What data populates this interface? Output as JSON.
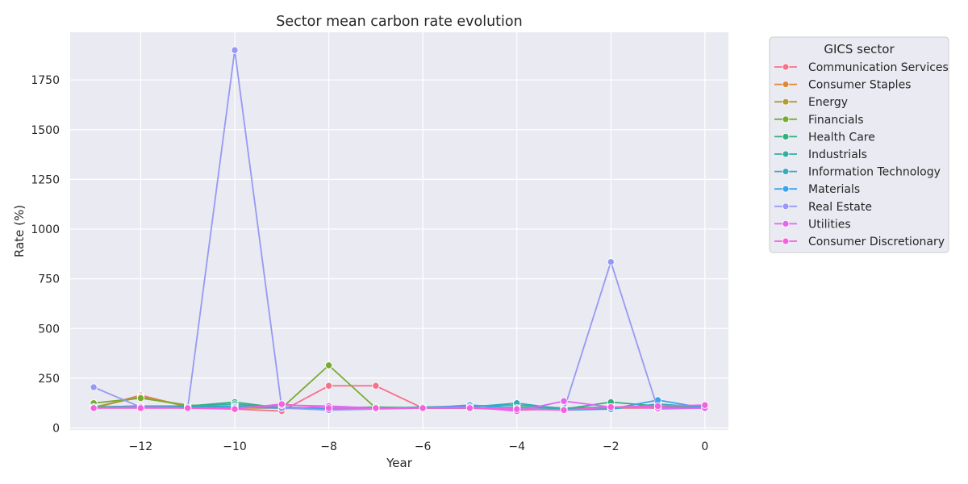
{
  "chart_data": {
    "type": "line",
    "title": "Sector mean carbon rate evolution",
    "xlabel": "Year",
    "ylabel": "Rate (%)",
    "xlim": [
      -13.5,
      0.5
    ],
    "ylim": [
      -10,
      1990
    ],
    "xticks": [
      -12,
      -10,
      -8,
      -6,
      -4,
      -2,
      0
    ],
    "xtick_labels": [
      "−12",
      "−10",
      "−8",
      "−6",
      "−4",
      "−2",
      "0"
    ],
    "yticks": [
      0,
      250,
      500,
      750,
      1000,
      1250,
      1500,
      1750
    ],
    "ytick_labels": [
      "0",
      "250",
      "500",
      "750",
      "1000",
      "1250",
      "1500",
      "1750"
    ],
    "grid": true,
    "background": "#eaeaf2",
    "legend": {
      "title": "GICS sector",
      "placement": "outside-right"
    },
    "series": [
      {
        "name": "Communication Services",
        "color": "#f77189",
        "x": [
          -13,
          -12,
          -11,
          -10,
          -9,
          -8,
          -7,
          -6,
          -5,
          -4,
          -3,
          -2,
          -1,
          0
        ],
        "y": [
          100,
          165,
          105,
          95,
          85,
          212,
          212,
          100,
          100,
          90,
          95,
          100,
          100,
          100
        ]
      },
      {
        "name": "Consumer Staples",
        "color": "#dc8932",
        "x": [
          -13,
          -12,
          -11,
          -10,
          -9,
          -8,
          -7,
          -6,
          -5,
          -4,
          -3,
          -2,
          -1,
          0
        ],
        "y": [
          100,
          160,
          110,
          100,
          100,
          100,
          100,
          100,
          100,
          100,
          95,
          100,
          105,
          100
        ]
      },
      {
        "name": "Energy",
        "color": "#ae9d31",
        "x": [
          -13,
          -12,
          -11,
          -10,
          -9,
          -8,
          -7,
          -6,
          -5,
          -4,
          -3,
          -2,
          -1,
          0
        ],
        "y": [
          105,
          155,
          110,
          105,
          100,
          100,
          105,
          100,
          100,
          100,
          95,
          105,
          105,
          100
        ]
      },
      {
        "name": "Financials",
        "color": "#77ab31",
        "x": [
          -13,
          -12,
          -11,
          -10,
          -9,
          -8,
          -7,
          -6,
          -5,
          -4,
          -3,
          -2,
          -1,
          0
        ],
        "y": [
          125,
          150,
          115,
          105,
          100,
          315,
          100,
          100,
          100,
          95,
          95,
          105,
          100,
          100
        ]
      },
      {
        "name": "Health Care",
        "color": "#33b07a",
        "x": [
          -13,
          -12,
          -11,
          -10,
          -9,
          -8,
          -7,
          -6,
          -5,
          -4,
          -3,
          -2,
          -1,
          0
        ],
        "y": [
          105,
          110,
          110,
          130,
          100,
          100,
          105,
          100,
          100,
          105,
          95,
          130,
          110,
          100
        ]
      },
      {
        "name": "Industrials",
        "color": "#36ada4",
        "x": [
          -13,
          -12,
          -11,
          -10,
          -9,
          -8,
          -7,
          -6,
          -5,
          -4,
          -3,
          -2,
          -1,
          0
        ],
        "y": [
          105,
          110,
          110,
          120,
          100,
          100,
          100,
          105,
          110,
          115,
          100,
          105,
          110,
          110
        ]
      },
      {
        "name": "Information Technology",
        "color": "#38aabc",
        "x": [
          -13,
          -12,
          -11,
          -10,
          -9,
          -8,
          -7,
          -6,
          -5,
          -4,
          -3,
          -2,
          -1,
          0
        ],
        "y": [
          100,
          110,
          105,
          110,
          105,
          95,
          100,
          100,
          105,
          125,
          95,
          95,
          120,
          105
        ]
      },
      {
        "name": "Materials",
        "color": "#3ba3ec",
        "x": [
          -13,
          -12,
          -11,
          -10,
          -9,
          -8,
          -7,
          -6,
          -5,
          -4,
          -3,
          -2,
          -1,
          0
        ],
        "y": [
          100,
          105,
          100,
          105,
          100,
          95,
          100,
          100,
          115,
          100,
          90,
          95,
          140,
          100
        ]
      },
      {
        "name": "Real Estate",
        "color": "#9799f4",
        "x": [
          -13,
          -12,
          -11,
          -10,
          -9,
          -8,
          -7,
          -6,
          -5,
          -4,
          -3,
          -2,
          -1,
          0
        ],
        "y": [
          205,
          105,
          100,
          1900,
          100,
          90,
          95,
          100,
          100,
          100,
          90,
          835,
          95,
          100
        ]
      },
      {
        "name": "Utilities",
        "color": "#e464f4",
        "x": [
          -13,
          -12,
          -11,
          -10,
          -9,
          -8,
          -7,
          -6,
          -5,
          -4,
          -3,
          -2,
          -1,
          0
        ],
        "y": [
          100,
          105,
          100,
          100,
          115,
          110,
          100,
          100,
          105,
          85,
          135,
          105,
          100,
          100
        ]
      },
      {
        "name": "Consumer Discretionary",
        "color": "#f561dd",
        "x": [
          -13,
          -12,
          -11,
          -10,
          -9,
          -8,
          -7,
          -6,
          -5,
          -4,
          -3,
          -2,
          -1,
          0
        ],
        "y": [
          100,
          100,
          100,
          95,
          120,
          100,
          100,
          100,
          100,
          95,
          90,
          105,
          110,
          115
        ]
      }
    ]
  }
}
